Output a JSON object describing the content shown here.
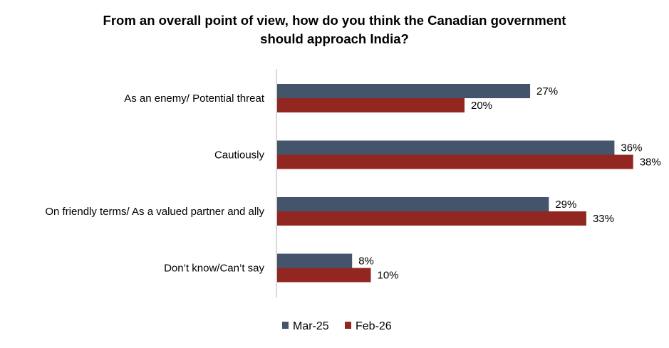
{
  "chart_data": {
    "type": "bar",
    "orientation": "horizontal",
    "title": "From an overall point of view, how do you think the Canadian government should approach India?",
    "title_lines": [
      "From an overall point of view, how do you think the Canadian government",
      "should approach India?"
    ],
    "categories": [
      "As an enemy/ Potential threat",
      "Cautiously",
      "On friendly terms/ As a valued partner and ally",
      "Don’t know/Can’t say"
    ],
    "series": [
      {
        "name": "Mar-25",
        "color": "#44546a",
        "values": [
          27,
          36,
          29,
          8
        ],
        "labels": [
          "27%",
          "36%",
          "29%",
          "8%"
        ]
      },
      {
        "name": "Feb-26",
        "color": "#922722",
        "values": [
          20,
          38,
          33,
          10
        ],
        "labels": [
          "20%",
          "38%",
          "33%",
          "10%"
        ]
      }
    ],
    "xlim": [
      0,
      40
    ],
    "unit": "%",
    "grid": false,
    "legend_position": "bottom",
    "axis_color": "#d9d9d9"
  }
}
